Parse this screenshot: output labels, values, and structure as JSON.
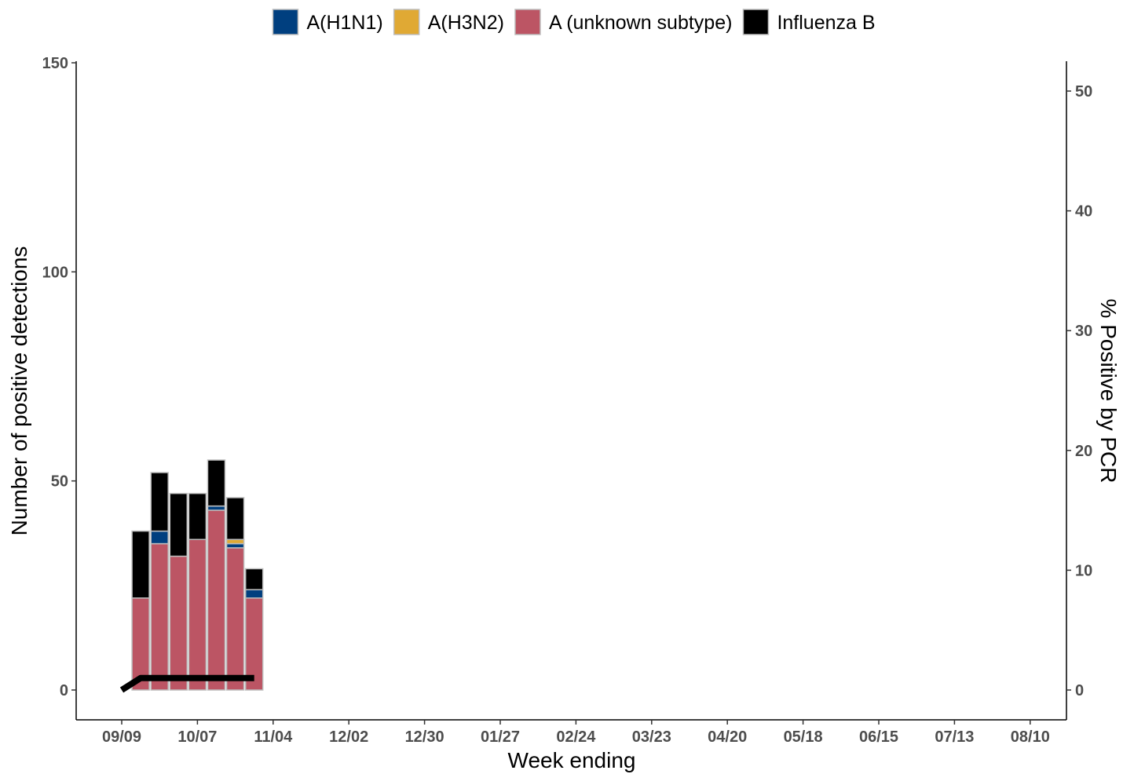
{
  "chart_data": {
    "type": "bar",
    "stacked": true,
    "title": "",
    "xlabel": "Week ending",
    "ylabel": "Number of positive detections",
    "y2label": "% Positive by PCR",
    "ylim": [
      0,
      150
    ],
    "y2lim": [
      0,
      50
    ],
    "yticks": [
      "0",
      "50",
      "100",
      "150"
    ],
    "y2ticks": [
      "0",
      "10",
      "20",
      "30",
      "40",
      "50"
    ],
    "x_tick_labels": [
      "09/09",
      "10/07",
      "11/04",
      "12/02",
      "12/30",
      "01/27",
      "02/24",
      "03/23",
      "04/20",
      "05/18",
      "06/15",
      "07/13",
      "08/10"
    ],
    "legend_position": "top",
    "grid": false,
    "bar_weeks": [
      "09/16",
      "09/23",
      "09/30",
      "10/07",
      "10/14",
      "10/21",
      "10/28"
    ],
    "series": [
      {
        "name": "A (unknown subtype)",
        "color": "#bc5564",
        "values": [
          22,
          35,
          32,
          36,
          43,
          34,
          22
        ]
      },
      {
        "name": "A(H1N1)",
        "color": "#003f7f",
        "values": [
          0,
          3,
          0,
          0,
          1,
          1,
          2
        ]
      },
      {
        "name": "A(H3N2)",
        "color": "#e0a934",
        "values": [
          0,
          0,
          0,
          0,
          0,
          1,
          0
        ]
      },
      {
        "name": "Influenza B",
        "color": "#000000",
        "values": [
          16,
          14,
          15,
          11,
          11,
          10,
          5
        ]
      }
    ],
    "legend_order": [
      "A(H1N1)",
      "A(H3N2)",
      "A (unknown subtype)",
      "Influenza B"
    ],
    "bar_outline_color": "#bdbdbd",
    "line": {
      "name": "% Positive by PCR",
      "color": "#000000",
      "weeks": [
        "09/09",
        "09/16",
        "09/23",
        "09/30",
        "10/07",
        "10/14",
        "10/21",
        "10/28"
      ],
      "values": [
        0,
        1,
        1,
        1,
        1,
        1,
        1,
        1
      ]
    }
  }
}
